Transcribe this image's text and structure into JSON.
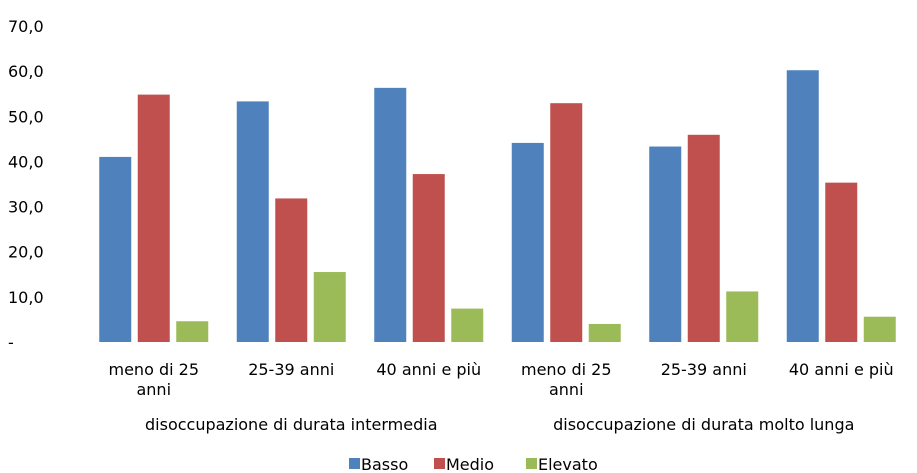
{
  "chart_data": {
    "type": "bar",
    "title": "",
    "xlabel": "",
    "ylabel": "",
    "ylim": [
      0,
      70
    ],
    "y_ticks": [
      "-",
      "10,0",
      "20,0",
      "30,0",
      "40,0",
      "50,0",
      "60,0",
      "70,0"
    ],
    "grid": false,
    "legend_position": "bottom",
    "groups": [
      {
        "label": "disoccupazione di durata intermedia",
        "categories": 3
      },
      {
        "label": "disoccupazione di durata molto lunga",
        "categories": 3
      }
    ],
    "categories": [
      [
        "meno di 25",
        "anni"
      ],
      [
        "25-39 anni"
      ],
      [
        "40 anni e più"
      ],
      [
        "meno di 25",
        "anni"
      ],
      [
        "25-39 anni"
      ],
      [
        "40 anni e più"
      ]
    ],
    "series": [
      {
        "name": "Basso",
        "color": "#4F81BD",
        "values": [
          41.0,
          53.3,
          56.3,
          44.1,
          43.3,
          60.2
        ]
      },
      {
        "name": "Medio",
        "color": "#C0504D",
        "values": [
          54.8,
          31.8,
          37.2,
          52.9,
          45.9,
          35.3
        ]
      },
      {
        "name": "Elevato",
        "color": "#9BBB59",
        "values": [
          4.6,
          15.5,
          7.4,
          4.0,
          11.2,
          5.6
        ]
      }
    ]
  }
}
